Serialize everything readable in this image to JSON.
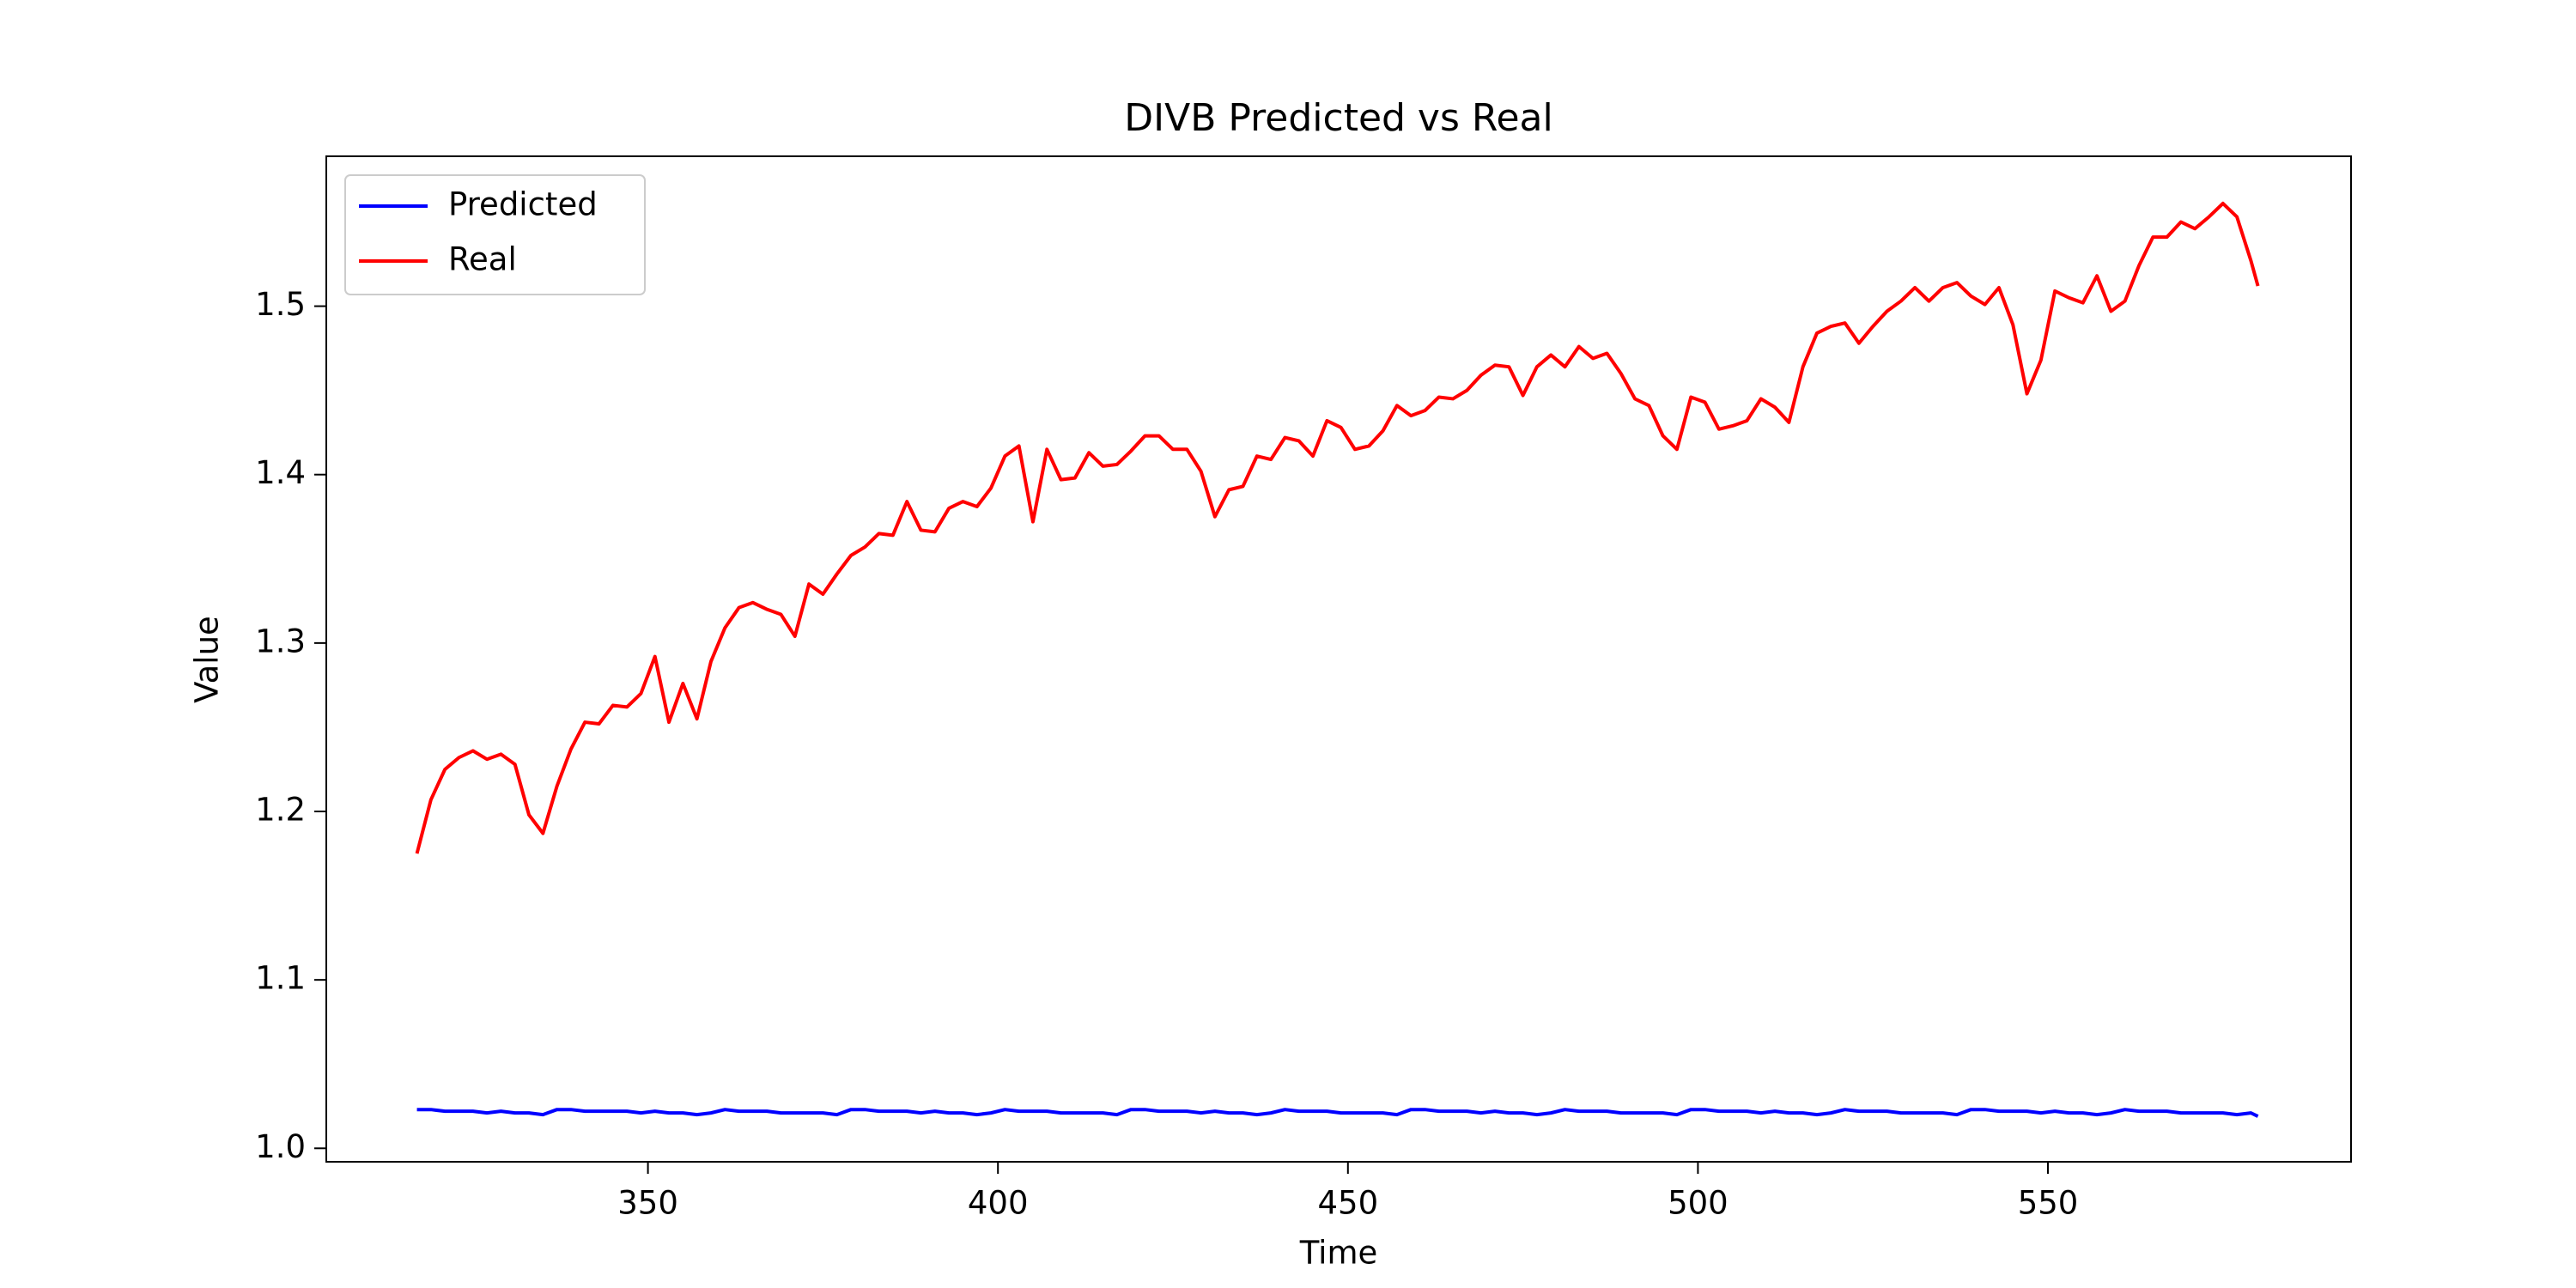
{
  "chart_data": {
    "type": "line",
    "title": "DIVB Predicted vs Real",
    "xlabel": "Time",
    "ylabel": "Value",
    "x": [
      317,
      319,
      321,
      323,
      325,
      327,
      329,
      331,
      333,
      335,
      337,
      339,
      341,
      343,
      345,
      347,
      349,
      351,
      353,
      355,
      357,
      359,
      361,
      363,
      365,
      367,
      369,
      371,
      373,
      375,
      377,
      379,
      381,
      383,
      385,
      387,
      389,
      391,
      393,
      395,
      397,
      399,
      401,
      403,
      405,
      407,
      409,
      411,
      413,
      415,
      417,
      419,
      421,
      423,
      425,
      427,
      429,
      431,
      433,
      435,
      437,
      439,
      441,
      443,
      445,
      447,
      449,
      451,
      453,
      455,
      457,
      459,
      461,
      463,
      465,
      467,
      469,
      471,
      473,
      475,
      477,
      479,
      481,
      483,
      485,
      487,
      489,
      491,
      493,
      495,
      497,
      499,
      501,
      503,
      505,
      507,
      509,
      511,
      513,
      515,
      517,
      519,
      521,
      523,
      525,
      527,
      529,
      531,
      533,
      535,
      537,
      539,
      541,
      543,
      545,
      547,
      549,
      551,
      553,
      555,
      557,
      559,
      561,
      563,
      565,
      567,
      569,
      571,
      573,
      575,
      577,
      579,
      580
    ],
    "series": [
      {
        "name": "Predicted",
        "color": "#0000ff",
        "values": [
          1.023,
          1.023,
          1.022,
          1.022,
          1.022,
          1.021,
          1.022,
          1.021,
          1.021,
          1.02,
          1.023,
          1.023,
          1.022,
          1.022,
          1.022,
          1.022,
          1.021,
          1.022,
          1.021,
          1.021,
          1.02,
          1.021,
          1.023,
          1.022,
          1.022,
          1.022,
          1.021,
          1.021,
          1.021,
          1.021,
          1.02,
          1.023,
          1.023,
          1.022,
          1.022,
          1.022,
          1.021,
          1.022,
          1.021,
          1.021,
          1.02,
          1.021,
          1.023,
          1.022,
          1.022,
          1.022,
          1.021,
          1.021,
          1.021,
          1.021,
          1.02,
          1.023,
          1.023,
          1.022,
          1.022,
          1.022,
          1.021,
          1.022,
          1.021,
          1.021,
          1.02,
          1.021,
          1.023,
          1.022,
          1.022,
          1.022,
          1.021,
          1.021,
          1.021,
          1.021,
          1.02,
          1.023,
          1.023,
          1.022,
          1.022,
          1.022,
          1.021,
          1.022,
          1.021,
          1.021,
          1.02,
          1.021,
          1.023,
          1.022,
          1.022,
          1.022,
          1.021,
          1.021,
          1.021,
          1.021,
          1.02,
          1.023,
          1.023,
          1.022,
          1.022,
          1.022,
          1.021,
          1.022,
          1.021,
          1.021,
          1.02,
          1.021,
          1.023,
          1.022,
          1.022,
          1.022,
          1.021,
          1.021,
          1.021,
          1.021,
          1.02,
          1.023,
          1.023,
          1.022,
          1.022,
          1.022,
          1.021,
          1.022,
          1.021,
          1.021,
          1.02,
          1.021,
          1.023,
          1.022,
          1.022,
          1.022,
          1.021,
          1.021,
          1.021,
          1.021,
          1.02,
          1.021,
          1.019
        ]
      },
      {
        "name": "Real",
        "color": "#ff0000",
        "values": [
          1.175,
          1.207,
          1.225,
          1.232,
          1.236,
          1.231,
          1.234,
          1.228,
          1.198,
          1.187,
          1.215,
          1.237,
          1.253,
          1.252,
          1.263,
          1.262,
          1.27,
          1.292,
          1.253,
          1.276,
          1.255,
          1.289,
          1.309,
          1.321,
          1.324,
          1.32,
          1.317,
          1.304,
          1.335,
          1.329,
          1.341,
          1.352,
          1.357,
          1.365,
          1.364,
          1.384,
          1.367,
          1.366,
          1.38,
          1.384,
          1.381,
          1.392,
          1.411,
          1.417,
          1.372,
          1.415,
          1.397,
          1.398,
          1.413,
          1.405,
          1.406,
          1.414,
          1.423,
          1.423,
          1.415,
          1.415,
          1.402,
          1.375,
          1.391,
          1.393,
          1.411,
          1.409,
          1.422,
          1.42,
          1.411,
          1.432,
          1.428,
          1.415,
          1.417,
          1.426,
          1.441,
          1.435,
          1.438,
          1.446,
          1.445,
          1.45,
          1.459,
          1.465,
          1.464,
          1.447,
          1.464,
          1.471,
          1.464,
          1.476,
          1.469,
          1.472,
          1.46,
          1.445,
          1.441,
          1.423,
          1.415,
          1.446,
          1.443,
          1.427,
          1.429,
          1.432,
          1.445,
          1.44,
          1.431,
          1.464,
          1.484,
          1.488,
          1.49,
          1.478,
          1.488,
          1.497,
          1.503,
          1.511,
          1.503,
          1.511,
          1.514,
          1.506,
          1.501,
          1.511,
          1.489,
          1.448,
          1.468,
          1.509,
          1.505,
          1.502,
          1.518,
          1.497,
          1.503,
          1.524,
          1.541,
          1.541,
          1.55,
          1.546,
          1.553,
          1.561,
          1.553,
          1.527,
          1.512
        ]
      }
    ],
    "xlim": [
      304.05,
      593.3
    ],
    "xticks": [
      350,
      400,
      450,
      500,
      550
    ],
    "ylim": [
      0.992,
      1.589
    ],
    "yticks": [
      {
        "value": 1,
        "label": "1.0"
      },
      1.1,
      1.2,
      1.3,
      1.4,
      1.5
    ],
    "grid": false,
    "legend": "upper left"
  }
}
